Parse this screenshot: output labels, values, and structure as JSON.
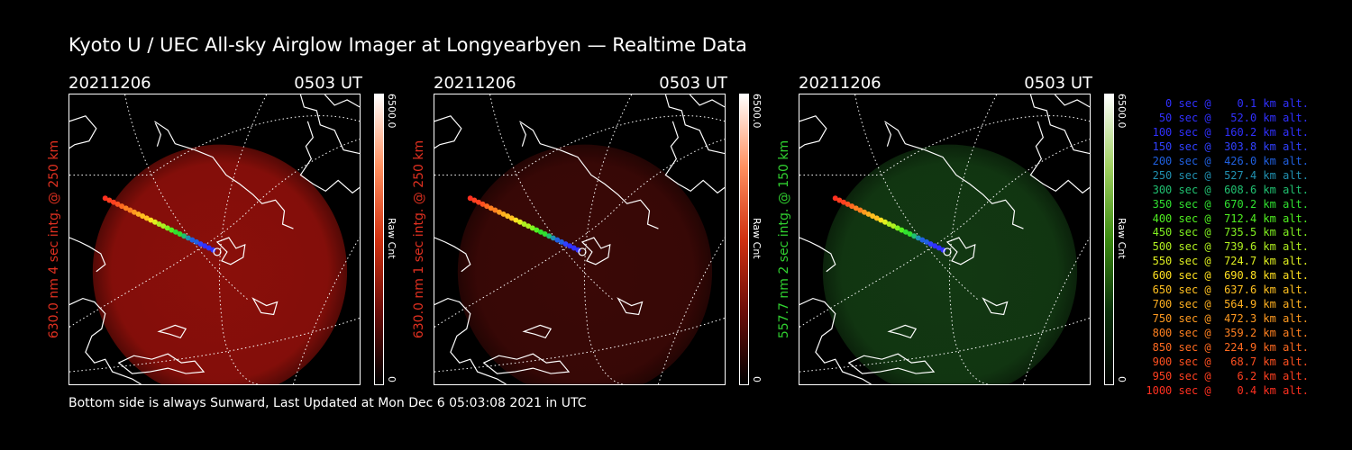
{
  "title": "Kyoto U / UEC All-sky Airglow Imager at Longyearbyen — Realtime Data",
  "footer": "Bottom side is always Sunward, Last Updated at Mon Dec  6 05:03:08 2021 in UTC",
  "panels": [
    {
      "date": "20211206",
      "time": "0503 UT",
      "label": "630.0 nm  4 sec intg. @ 250 km",
      "label_color": "#e03020",
      "cbar_max": "6500.0",
      "cbar_unit": "Raw Cnt",
      "cbar_min": "0",
      "emission_color": "#8a0f0a",
      "emission_level": 0.9
    },
    {
      "date": "20211206",
      "time": "0503 UT",
      "label": "630.0 nm  1 sec intg. @ 250 km",
      "label_color": "#e03020",
      "cbar_max": "6500.0",
      "cbar_unit": "Raw Cnt",
      "cbar_min": "0",
      "emission_color": "#3a0806",
      "emission_level": 0.35
    },
    {
      "date": "20211206",
      "time": "0503 UT",
      "label": "557.7 nm  2 sec intg. @ 150 km",
      "label_color": "#30d030",
      "cbar_max": "6500.0",
      "cbar_unit": "Raw Cnt",
      "cbar_min": "0",
      "emission_color": "#123812",
      "emission_level": 0.3
    }
  ],
  "legend": [
    {
      "text": "   0 sec @    0.1 km alt.",
      "color": "#3030ff"
    },
    {
      "text": "  50 sec @   52.0 km alt.",
      "color": "#3030ff"
    },
    {
      "text": " 100 sec @  160.2 km alt.",
      "color": "#3030ff"
    },
    {
      "text": " 150 sec @  303.8 km alt.",
      "color": "#3040ff"
    },
    {
      "text": " 200 sec @  426.0 km alt.",
      "color": "#2060e0"
    },
    {
      "text": " 250 sec @  527.4 km alt.",
      "color": "#2090b0"
    },
    {
      "text": " 300 sec @  608.6 km alt.",
      "color": "#20c070"
    },
    {
      "text": " 350 sec @  670.2 km alt.",
      "color": "#30e030"
    },
    {
      "text": " 400 sec @  712.4 km alt.",
      "color": "#50f020"
    },
    {
      "text": " 450 sec @  735.5 km alt.",
      "color": "#80f020"
    },
    {
      "text": " 500 sec @  739.6 km alt.",
      "color": "#b0f020"
    },
    {
      "text": " 550 sec @  724.7 km alt.",
      "color": "#e0f020"
    },
    {
      "text": " 600 sec @  690.8 km alt.",
      "color": "#ffe020"
    },
    {
      "text": " 650 sec @  637.6 km alt.",
      "color": "#ffc020"
    },
    {
      "text": " 700 sec @  564.9 km alt.",
      "color": "#ffb020"
    },
    {
      "text": " 750 sec @  472.3 km alt.",
      "color": "#ff9a20"
    },
    {
      "text": " 800 sec @  359.2 km alt.",
      "color": "#ff8020"
    },
    {
      "text": " 850 sec @  224.9 km alt.",
      "color": "#ff6a20"
    },
    {
      "text": " 900 sec @   68.7 km alt.",
      "color": "#ff5020"
    },
    {
      "text": " 950 sec @    6.2 km alt.",
      "color": "#ff4020"
    },
    {
      "text": "1000 sec @    0.4 km alt.",
      "color": "#ff3020"
    }
  ]
}
